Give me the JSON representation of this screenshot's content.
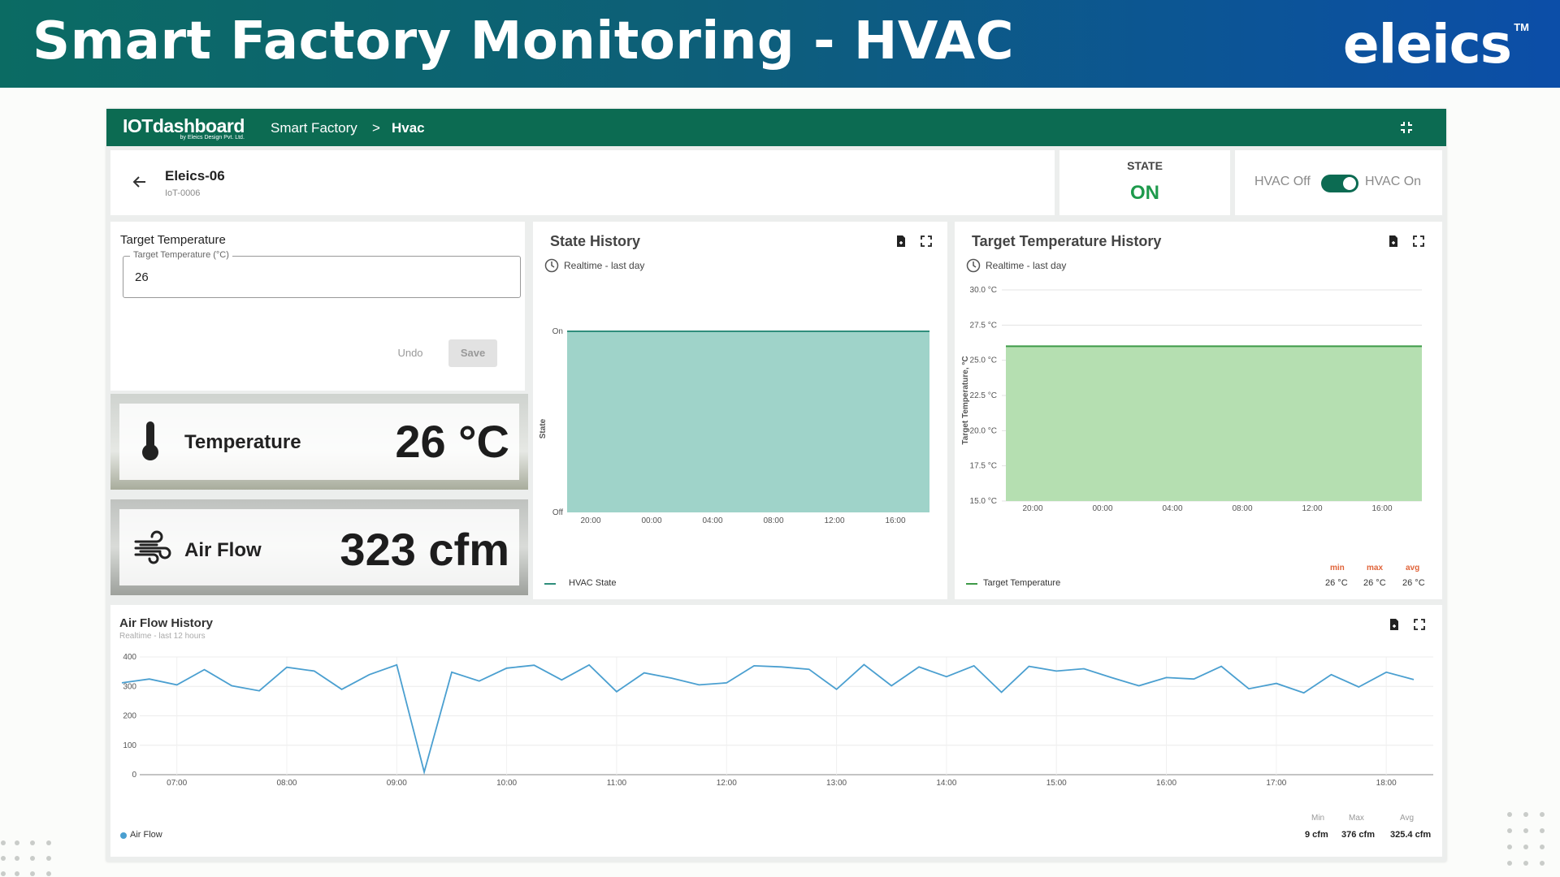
{
  "banner": {
    "title": "Smart Factory Monitoring - HVAC",
    "brand": "eleics",
    "tm": "TM"
  },
  "topbar": {
    "logo": "IOTdashboard",
    "logo_sub": "by Eleics Design Pvt. Ltd.",
    "breadcrumb": [
      "Smart Factory",
      ">",
      "Hvac"
    ]
  },
  "device": {
    "name": "Eleics-06",
    "id": "IoT-0006"
  },
  "state": {
    "label": "STATE",
    "value": "ON",
    "color": "#1e9a4c"
  },
  "toggle": {
    "off_label": "HVAC Off",
    "on_label": "HVAC On",
    "checked": true,
    "accent": "#0c6b52"
  },
  "target_form": {
    "title": "Target Temperature",
    "field_label": "Target Temperature (°C)",
    "value": "26",
    "undo": "Undo",
    "save": "Save"
  },
  "temperature_tile": {
    "label": "Temperature",
    "value": "26 °C",
    "icon": "thermometer-icon"
  },
  "airflow_tile": {
    "label": "Air Flow",
    "value": "323 cfm",
    "icon": "wind-icon"
  },
  "state_history": {
    "title": "State History",
    "subtitle": "Realtime - last day",
    "legend": "HVAC State",
    "ylabel": "State",
    "y_ticks": [
      "On",
      "Off"
    ],
    "x_ticks": [
      "20:00",
      "00:00",
      "04:00",
      "08:00",
      "12:00",
      "16:00"
    ],
    "color": "#9fd3c9",
    "line_color": "#2f8e7c"
  },
  "target_history": {
    "title": "Target Temperature History",
    "subtitle": "Realtime - last day",
    "legend": "Target Temperature",
    "ylabel": "Target Temperature, °C",
    "y_ticks": [
      "30.0 °C",
      "27.5 °C",
      "25.0 °C",
      "22.5 °C",
      "20.0 °C",
      "17.5 °C",
      "15.0 °C"
    ],
    "x_ticks": [
      "20:00",
      "00:00",
      "04:00",
      "08:00",
      "12:00",
      "16:00"
    ],
    "stats": {
      "min_label": "min",
      "max_label": "max",
      "avg_label": "avg",
      "min": "26 °C",
      "max": "26 °C",
      "avg": "26 °C"
    },
    "color": "#b5dfb1",
    "line_color": "#3e9a48",
    "stat_color": "#e0643a"
  },
  "airflow_history": {
    "title": "Air Flow History",
    "subtitle": "Realtime - last 12 hours",
    "legend": "Air Flow",
    "stats": {
      "min_label": "Min",
      "max_label": "Max",
      "avg_label": "Avg",
      "min": "9 cfm",
      "max": "376 cfm",
      "avg": "325.4 cfm"
    },
    "color": "#4a9fd0"
  },
  "chart_data": [
    {
      "type": "area",
      "title": "State History",
      "ylabel": "State",
      "x": [
        "20:00",
        "00:00",
        "04:00",
        "08:00",
        "12:00",
        "16:00"
      ],
      "series": [
        {
          "name": "HVAC State",
          "values": [
            "On",
            "On",
            "On",
            "On",
            "On",
            "On"
          ]
        }
      ],
      "y_categories": [
        "Off",
        "On"
      ]
    },
    {
      "type": "area",
      "title": "Target Temperature History",
      "ylabel": "Target Temperature, °C",
      "ylim": [
        15,
        30
      ],
      "x": [
        "20:00",
        "00:00",
        "04:00",
        "08:00",
        "12:00",
        "16:00"
      ],
      "series": [
        {
          "name": "Target Temperature",
          "values": [
            26,
            26,
            26,
            26,
            26,
            26
          ]
        }
      ]
    },
    {
      "type": "line",
      "title": "Air Flow History",
      "ylim": [
        0,
        400
      ],
      "y_ticks": [
        400,
        300,
        200,
        100,
        0
      ],
      "x_ticks": [
        "07:00",
        "08:00",
        "09:00",
        "10:00",
        "11:00",
        "12:00",
        "13:00",
        "14:00",
        "15:00",
        "16:00",
        "17:00",
        "18:00"
      ],
      "x_range": [
        "06:30",
        "18:15"
      ],
      "series": [
        {
          "name": "Air Flow",
          "points": [
            [
              "06:30",
              312
            ],
            [
              "06:45",
              325
            ],
            [
              "07:00",
              305
            ],
            [
              "07:15",
              357
            ],
            [
              "07:30",
              302
            ],
            [
              "07:45",
              285
            ],
            [
              "08:00",
              365
            ],
            [
              "08:15",
              352
            ],
            [
              "08:30",
              290
            ],
            [
              "08:45",
              340
            ],
            [
              "09:00",
              373
            ],
            [
              "09:15",
              9
            ],
            [
              "09:30",
              348
            ],
            [
              "09:45",
              318
            ],
            [
              "10:00",
              362
            ],
            [
              "10:15",
              372
            ],
            [
              "10:30",
              322
            ],
            [
              "10:45",
              373
            ],
            [
              "11:00",
              282
            ],
            [
              "11:15",
              346
            ],
            [
              "11:30",
              328
            ],
            [
              "11:45",
              305
            ],
            [
              "12:00",
              312
            ],
            [
              "12:15",
              370
            ],
            [
              "12:30",
              366
            ],
            [
              "12:45",
              358
            ],
            [
              "13:00",
              290
            ],
            [
              "13:15",
              374
            ],
            [
              "13:30",
              302
            ],
            [
              "13:45",
              366
            ],
            [
              "14:00",
              333
            ],
            [
              "14:15",
              370
            ],
            [
              "14:30",
              280
            ],
            [
              "14:45",
              368
            ],
            [
              "15:00",
              352
            ],
            [
              "15:15",
              360
            ],
            [
              "15:30",
              330
            ],
            [
              "15:45",
              302
            ],
            [
              "16:00",
              330
            ],
            [
              "16:15",
              325
            ],
            [
              "16:30",
              368
            ],
            [
              "16:45",
              292
            ],
            [
              "17:00",
              310
            ],
            [
              "17:15",
              278
            ],
            [
              "17:30",
              340
            ],
            [
              "17:45",
              298
            ],
            [
              "18:00",
              348
            ],
            [
              "18:15",
              323
            ]
          ]
        }
      ]
    }
  ]
}
